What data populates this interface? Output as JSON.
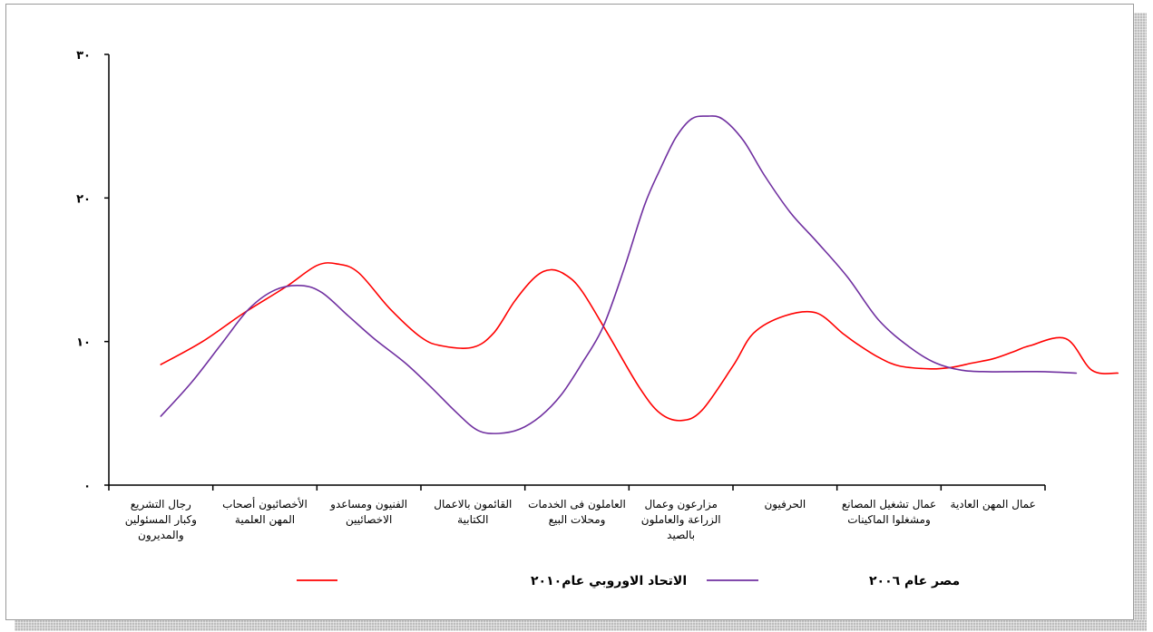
{
  "chart_data": {
    "type": "line",
    "title": "",
    "xlabel": "",
    "ylabel": "",
    "ylim": [
      0,
      30
    ],
    "y_ticks": [
      {
        "value": 0,
        "label": "٠"
      },
      {
        "value": 10,
        "label": "١٠"
      },
      {
        "value": 20,
        "label": "٢٠"
      },
      {
        "value": 30,
        "label": "٣٠"
      }
    ],
    "categories": [
      [
        "رجال التشريع",
        "وكبار المسئولين",
        "والمديرون"
      ],
      [
        "الأخصائيون أصحاب",
        "المهن العلمية"
      ],
      [
        "الفنيون ومساعدو",
        "الاخصائيين"
      ],
      [
        "القائمون بالاعمال",
        "الكتابية"
      ],
      [
        "العاملون فى الخدمات",
        "ومحلات البيع"
      ],
      [
        "مزارعون وعمال",
        "الزراعة والعاملون",
        "بالصيد"
      ],
      [
        "الحرفيون"
      ],
      [
        "عمال تشغيل المصانع",
        "ومشغلوا الماكينات"
      ],
      [
        "عمال المهن العادية"
      ]
    ],
    "series": [
      {
        "name": "الاتحاد الاوروبي عام٢٠١٠",
        "color": "#ff0000",
        "x": [
          0.5,
          0.9,
          1.3,
          1.7,
          2.0,
          2.2,
          2.4,
          2.7,
          3.0,
          3.2,
          3.5,
          3.7,
          3.9,
          4.1,
          4.25,
          4.4,
          4.55,
          4.8,
          5.1,
          5.3,
          5.5,
          5.7,
          6.0,
          6.2,
          6.5,
          6.8,
          7.05,
          7.2,
          7.4,
          7.6,
          7.9,
          8.1,
          8.3,
          8.5,
          8.7,
          8.85,
          9.2,
          9.45,
          9.7
        ],
        "values": [
          8.4,
          10.0,
          12.0,
          13.8,
          15.3,
          15.4,
          14.8,
          12.3,
          10.3,
          9.7,
          9.6,
          10.6,
          12.8,
          14.5,
          15.0,
          14.6,
          13.5,
          10.5,
          6.8,
          5.0,
          4.5,
          5.2,
          8.3,
          10.6,
          11.8,
          12.0,
          10.6,
          9.8,
          8.9,
          8.3,
          8.1,
          8.2,
          8.5,
          8.8,
          9.3,
          9.7,
          10.2,
          8.0,
          7.8
        ],
        "smooth": true
      },
      {
        "name": "مصر عام ٢٠٠٦",
        "color": "#7030a0",
        "x": [
          0.5,
          0.8,
          1.1,
          1.35,
          1.6,
          1.85,
          2.05,
          2.3,
          2.55,
          2.85,
          3.1,
          3.35,
          3.55,
          3.75,
          3.95,
          4.15,
          4.35,
          4.55,
          4.75,
          4.95,
          5.15,
          5.3,
          5.45,
          5.6,
          5.75,
          5.9,
          6.1,
          6.3,
          6.55,
          6.8,
          7.1,
          7.4,
          7.7,
          7.95,
          8.2,
          8.45,
          8.7,
          9.0,
          9.3
        ],
        "values": [
          4.8,
          7.2,
          10.0,
          12.3,
          13.6,
          13.9,
          13.4,
          11.8,
          10.2,
          8.5,
          6.8,
          5.0,
          3.8,
          3.6,
          3.9,
          4.8,
          6.3,
          8.5,
          11.0,
          15.0,
          19.5,
          22.0,
          24.2,
          25.5,
          25.7,
          25.5,
          24.0,
          21.6,
          19.0,
          17.0,
          14.5,
          11.5,
          9.6,
          8.5,
          8.0,
          7.9,
          7.9,
          7.9,
          7.8
        ],
        "smooth": true
      }
    ],
    "legend": {
      "position": "bottom",
      "entries": [
        "الاتحاد الاوروبي عام٢٠١٠",
        "مصر عام ٢٠٠٦"
      ]
    },
    "grid": false
  }
}
